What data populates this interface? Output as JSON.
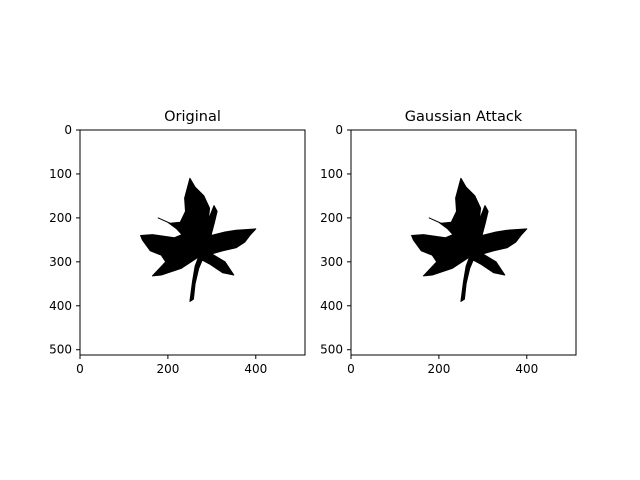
{
  "chart_data": [
    {
      "type": "image",
      "title": "Original",
      "xlim": [
        0,
        512
      ],
      "ylim": [
        512,
        0
      ],
      "xticks": [
        0,
        200,
        400
      ],
      "yticks": [
        0,
        100,
        200,
        300,
        400,
        500
      ],
      "image_content": "black maple leaf silhouette on white background"
    },
    {
      "type": "image",
      "title": "Gaussian Attack",
      "xlim": [
        0,
        512
      ],
      "ylim": [
        512,
        0
      ],
      "xticks": [
        0,
        200,
        400
      ],
      "yticks": [
        0,
        100,
        200,
        300,
        400,
        500
      ],
      "image_content": "black maple leaf silhouette on white background"
    }
  ],
  "colors": {
    "leaf": "#000000",
    "background": "#ffffff",
    "axis": "#000000"
  }
}
